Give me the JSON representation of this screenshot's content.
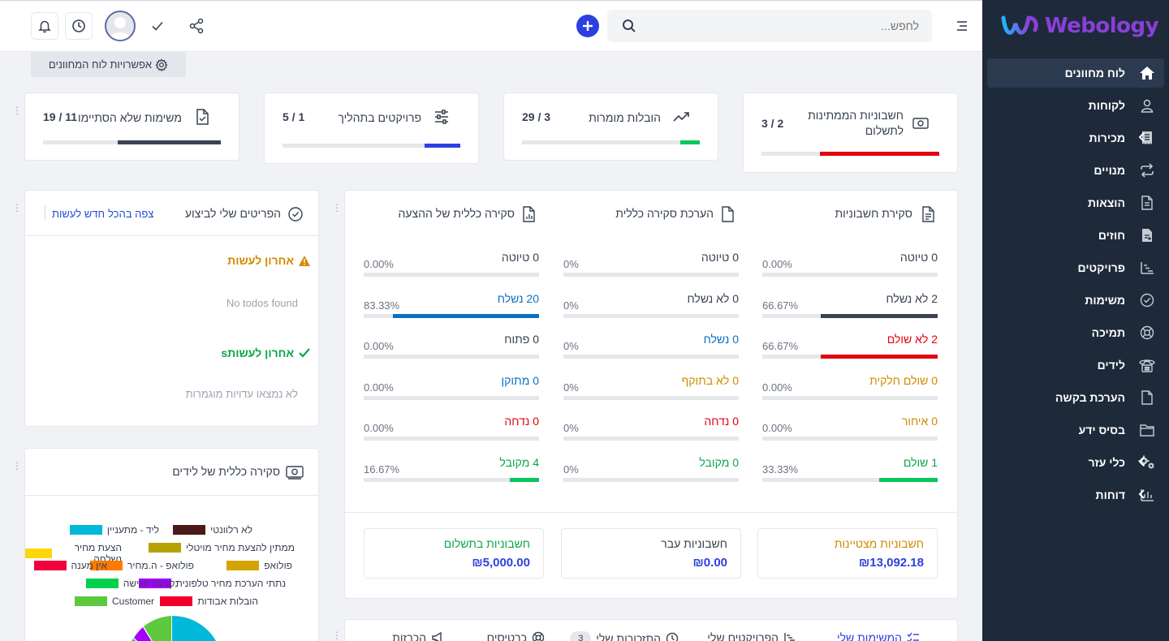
{
  "app": {
    "logo_text": "Webology",
    "accent_color": "#2d3fe0",
    "sidebar_bg": "#1e2a3a"
  },
  "sidebar": {
    "items": [
      {
        "label": "לוח מחוונים",
        "icon": "home-icon",
        "active": true
      },
      {
        "label": "לקוחות",
        "icon": "user-icon"
      },
      {
        "label": "מכירות",
        "icon": "receipt-icon",
        "has_children": true
      },
      {
        "label": "מנויים",
        "icon": "repeat-icon"
      },
      {
        "label": "הוצאות",
        "icon": "file-text-icon"
      },
      {
        "label": "חוזים",
        "icon": "contract-icon"
      },
      {
        "label": "פרויקטים",
        "icon": "chart-steps-icon"
      },
      {
        "label": "משימות",
        "icon": "check-circle-icon"
      },
      {
        "label": "תמיכה",
        "icon": "lifebuoy-icon"
      },
      {
        "label": "לידים",
        "icon": "phone-icon"
      },
      {
        "label": "הערכת בקשה",
        "icon": "file-icon"
      },
      {
        "label": "בסיס ידע",
        "icon": "folder-icon"
      },
      {
        "label": "כלי עזר",
        "icon": "cogs-icon",
        "has_children": true
      },
      {
        "label": "דוחות",
        "icon": "bar-chart-icon",
        "has_children": true
      }
    ]
  },
  "topbar": {
    "search_placeholder": "לחפש..."
  },
  "dashboard_options": {
    "label": "אפשרויות לוח המחוונים"
  },
  "stats": [
    {
      "title": "חשבוניות הממתינות לתשלום",
      "value": "3 / 2",
      "icon": "money-icon",
      "fill": 0.67,
      "color": "#e3000f"
    },
    {
      "title": "הובלות מומרות",
      "value": "29 / 3",
      "icon": "trending-up-icon",
      "fill": 0.11,
      "color": "#0ac75b"
    },
    {
      "title": "פרויקטים בתהליך",
      "value": "5 / 1",
      "icon": "sliders-icon",
      "fill": 0.2,
      "color": "#2d3fe0"
    },
    {
      "title": "משימות שלא הסתיימו",
      "value": "19 / 11",
      "icon": "file-check-icon",
      "fill": 0.58,
      "color": "#3b4252"
    }
  ],
  "todos": {
    "title": "הפריטים שלי לביצוע",
    "view_all": "צפה בהכל",
    "new_todo": "חדש לעשות",
    "latest_todo": "אחרון לעשות",
    "no_todos": "No todos found",
    "latest_finished": "אחרון לעשותs",
    "no_finished": "לא נמצאו עדויות מוגמרות"
  },
  "invoice_overview": {
    "columns": [
      {
        "title": "סקירת חשבוניות",
        "icon": "file-text-icon",
        "rows": [
          {
            "label": "0 טיוטה",
            "pct": "0.00%",
            "fill": 0,
            "color": "#374151",
            "bar": "#374151"
          },
          {
            "label": "2 לא נשלח",
            "pct": "66.67%",
            "fill": 0.667,
            "color": "#374151",
            "bar": "#3b4252"
          },
          {
            "label": "2 לא שולם",
            "pct": "66.67%",
            "fill": 0.667,
            "color": "#e3000f",
            "bar": "#e3000f"
          },
          {
            "label": "0 שולם חלקית",
            "pct": "0.00%",
            "fill": 0,
            "color": "#d08a00",
            "bar": "#d08a00"
          },
          {
            "label": "0 איחור",
            "pct": "0.00%",
            "fill": 0,
            "color": "#d08a00",
            "bar": "#d08a00"
          },
          {
            "label": "1 שולם",
            "pct": "33.33%",
            "fill": 0.333,
            "color": "#0aa64a",
            "bar": "#0ac75b"
          }
        ]
      },
      {
        "title": "הערכת סקירה כללית",
        "icon": "file-icon",
        "rows": [
          {
            "label": "0 טיוטה",
            "pct": "0%",
            "fill": 0,
            "color": "#374151",
            "bar": "#374151"
          },
          {
            "label": "0 לא נשלח",
            "pct": "0%",
            "fill": 0,
            "color": "#374151",
            "bar": "#374151"
          },
          {
            "label": "0 נשלח",
            "pct": "0%",
            "fill": 0,
            "color": "#0a6fc2",
            "bar": "#0a6fc2"
          },
          {
            "label": "0 לא בתוקף",
            "pct": "0%",
            "fill": 0,
            "color": "#d08a00",
            "bar": "#d08a00"
          },
          {
            "label": "0 נדחה",
            "pct": "0%",
            "fill": 0,
            "color": "#e3000f",
            "bar": "#e3000f"
          },
          {
            "label": "0 מקובל",
            "pct": "0%",
            "fill": 0,
            "color": "#0aa64a",
            "bar": "#0ac75b"
          }
        ]
      },
      {
        "title": "סקירה כללית של ההצעה",
        "icon": "file-chart-icon",
        "rows": [
          {
            "label": "0 טיוטה",
            "pct": "0.00%",
            "fill": 0,
            "color": "#374151",
            "bar": "#374151"
          },
          {
            "label": "20 נשלח",
            "pct": "83.33%",
            "fill": 0.833,
            "color": "#0a6fc2",
            "bar": "#0a6fc2"
          },
          {
            "label": "0 פתוח",
            "pct": "0.00%",
            "fill": 0,
            "color": "#374151",
            "bar": "#374151"
          },
          {
            "label": "0 מתוקן",
            "pct": "0.00%",
            "fill": 0,
            "color": "#0a6fc2",
            "bar": "#0a6fc2"
          },
          {
            "label": "0 נדחה",
            "pct": "0.00%",
            "fill": 0,
            "color": "#e3000f",
            "bar": "#e3000f"
          },
          {
            "label": "4 מקובל",
            "pct": "16.67%",
            "fill": 0.167,
            "color": "#0aa64a",
            "bar": "#0ac75b"
          }
        ]
      }
    ],
    "summary": [
      {
        "label": "חשבוניות מצטיינות",
        "value": "₪13,092.18",
        "color": "#d08a00"
      },
      {
        "label": "חשבוניות עבר",
        "value": "₪0.00",
        "color": "#374151"
      },
      {
        "label": "חשבוניות בתשלום",
        "value": "₪5,000.00",
        "color": "#0aa64a"
      }
    ]
  },
  "leads_overview": {
    "title": "סקירה כללית של לידים",
    "legend": [
      {
        "label": "לא רלוונטי",
        "color": "#4a1a1a"
      },
      {
        "label": "ליד - מתעניין",
        "color": "#00b8d9"
      },
      {
        "label": "ממתין להצעת מחיר מויטלי",
        "color": "#b5a300"
      },
      {
        "label": "הצעת מחיר נשלחה",
        "color": "#ffd60a"
      },
      {
        "label": "פולואפ",
        "color": "#d4a400"
      },
      {
        "label": "פולואפ - ה.מחיר",
        "color": "#ff7b00"
      },
      {
        "label": "אין מענה",
        "color": "#f0003c"
      },
      {
        "label": "נתתי הערכת מחיר טלפונית",
        "color": "#a300ff"
      },
      {
        "label": "נקבעה פגישה",
        "color": "#00d14a"
      },
      {
        "label": "הובלות אבודות",
        "color": "#f00028"
      },
      {
        "label": "Customer",
        "color": "#5cc93e"
      }
    ]
  },
  "bottom_tabs": [
    {
      "label": "המשימות שלי",
      "icon": "tasks-icon",
      "active": true
    },
    {
      "label": "הפרויקטים שלי",
      "icon": "projects-icon"
    },
    {
      "label": "התזכורות שלי",
      "icon": "clock-icon",
      "badge": "3"
    },
    {
      "label": "כרטיסים",
      "icon": "lifebuoy-icon"
    },
    {
      "label": "הכרזות",
      "icon": "megaphone-icon"
    }
  ]
}
